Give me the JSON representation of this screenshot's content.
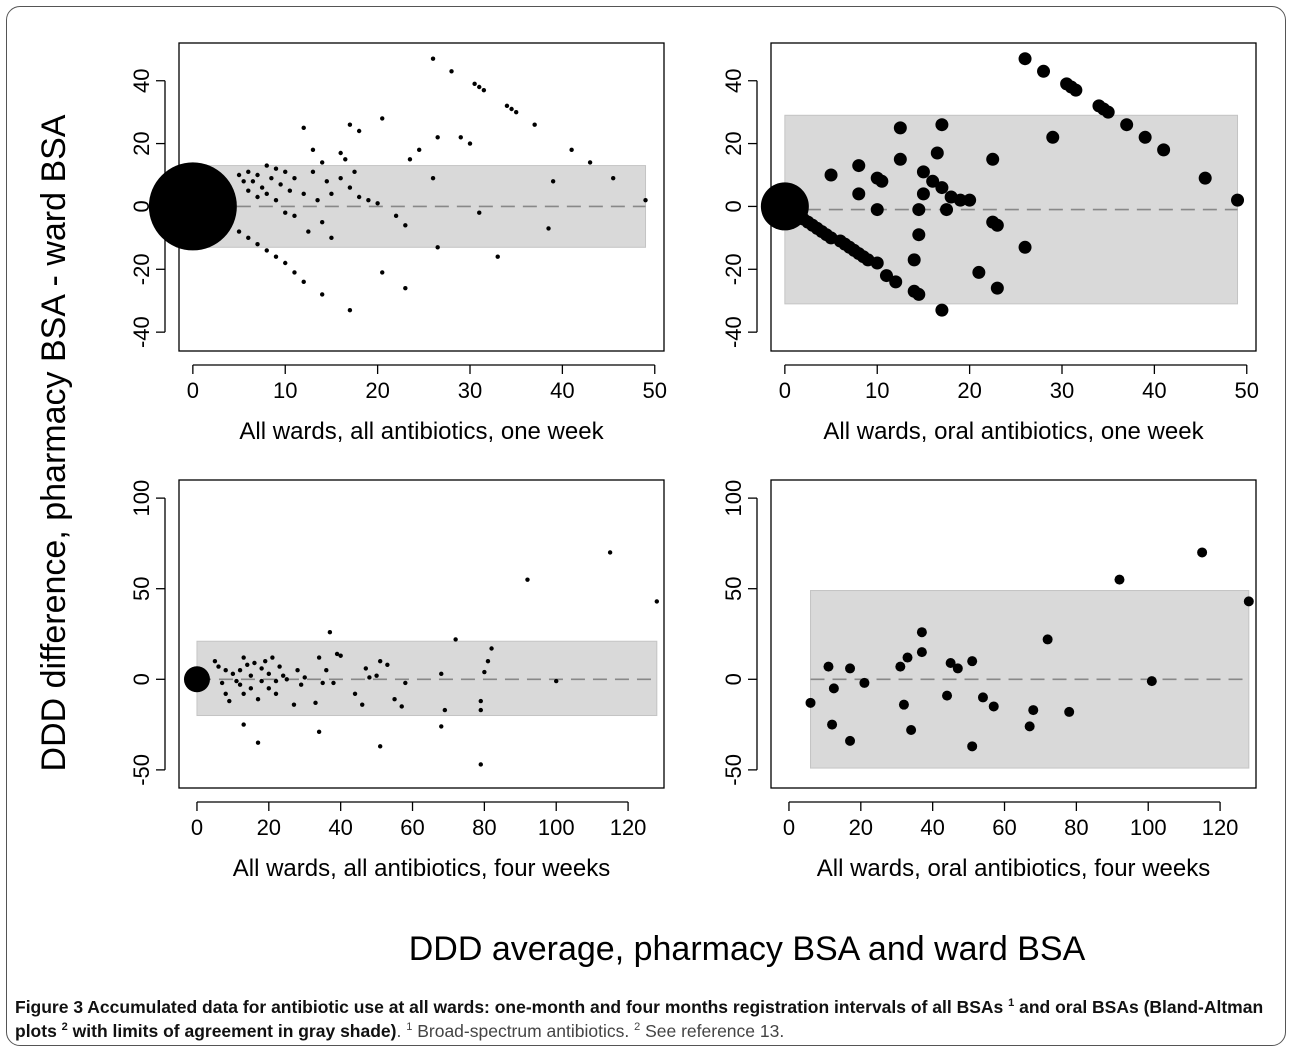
{
  "figure": {
    "y_axis_title": "DDD difference, pharmacy BSA - ward BSA",
    "x_axis_title": "DDD average, pharmacy BSA and ward BSA",
    "caption": {
      "label": "Figure 3",
      "bold_part1": " Accumulated data for antibiotic use at all wards: one-month and four months registration intervals of all BSAs ",
      "sup1": "1",
      "bold_part2": " and oral BSAs (Bland-Altman plots ",
      "sup2": "2",
      "bold_part3": " with limits of agreement in gray shade)",
      "normal_part1": ". ",
      "sup3": "1",
      "normal_part2": " Broad-spectrum antibiotics. ",
      "sup4": "2",
      "normal_part3": " See reference 13."
    }
  },
  "colors": {
    "points": "#000000",
    "limits_band": "#d9d9d9",
    "mean_line": "#888888",
    "axes": "#000000"
  },
  "chart_data": [
    {
      "type": "scatter",
      "xlabel": "All wards, all antibiotics, one week",
      "ylabel": "",
      "xlim": [
        -1.5,
        51
      ],
      "ylim": [
        -46,
        52
      ],
      "xticks": [
        0,
        10,
        20,
        30,
        40,
        50
      ],
      "yticks": [
        -40,
        -20,
        0,
        20,
        40
      ],
      "limits_of_agreement": [
        -13,
        13
      ],
      "band_x": [
        0,
        49
      ],
      "mean_difference": 0,
      "big_points": [
        {
          "x": 0,
          "y": 0,
          "r_px": 44
        }
      ],
      "points": [
        {
          "x": 5,
          "y": 10
        },
        {
          "x": 5.5,
          "y": 8
        },
        {
          "x": 6,
          "y": 11
        },
        {
          "x": 6,
          "y": 5
        },
        {
          "x": 6.5,
          "y": 8
        },
        {
          "x": 7,
          "y": 10
        },
        {
          "x": 7,
          "y": 3
        },
        {
          "x": 7.5,
          "y": 6
        },
        {
          "x": 8,
          "y": 13
        },
        {
          "x": 8,
          "y": 4
        },
        {
          "x": 8.5,
          "y": 9
        },
        {
          "x": 9,
          "y": 12
        },
        {
          "x": 9,
          "y": 2
        },
        {
          "x": 9.5,
          "y": 7
        },
        {
          "x": 10,
          "y": 11
        },
        {
          "x": 10,
          "y": -2
        },
        {
          "x": 10.5,
          "y": 5
        },
        {
          "x": 11,
          "y": 9
        },
        {
          "x": 11,
          "y": -3
        },
        {
          "x": 12,
          "y": 25
        },
        {
          "x": 12,
          "y": 4
        },
        {
          "x": 12.5,
          "y": -8
        },
        {
          "x": 13,
          "y": 11
        },
        {
          "x": 13,
          "y": 18
        },
        {
          "x": 13.5,
          "y": 2
        },
        {
          "x": 14,
          "y": 14
        },
        {
          "x": 14,
          "y": -5
        },
        {
          "x": 14.5,
          "y": 8
        },
        {
          "x": 15,
          "y": 4
        },
        {
          "x": 15,
          "y": -10
        },
        {
          "x": 16,
          "y": 9
        },
        {
          "x": 16,
          "y": 17
        },
        {
          "x": 16.5,
          "y": 15
        },
        {
          "x": 17,
          "y": 26
        },
        {
          "x": 17,
          "y": 6
        },
        {
          "x": 17.5,
          "y": 11
        },
        {
          "x": 18,
          "y": 24
        },
        {
          "x": 18,
          "y": 3
        },
        {
          "x": 19,
          "y": 2
        },
        {
          "x": 20,
          "y": 1
        },
        {
          "x": 20.5,
          "y": 28
        },
        {
          "x": 20.5,
          "y": -21
        },
        {
          "x": 22,
          "y": -3
        },
        {
          "x": 23,
          "y": -26
        },
        {
          "x": 23,
          "y": -6
        },
        {
          "x": 23.5,
          "y": 15
        },
        {
          "x": 24.5,
          "y": 18
        },
        {
          "x": 26,
          "y": 9
        },
        {
          "x": 26,
          "y": 47
        },
        {
          "x": 26.5,
          "y": 22
        },
        {
          "x": 26.5,
          "y": -13
        },
        {
          "x": 28,
          "y": 43
        },
        {
          "x": 29,
          "y": 22
        },
        {
          "x": 30,
          "y": 20
        },
        {
          "x": 30.5,
          "y": 39
        },
        {
          "x": 31,
          "y": 38
        },
        {
          "x": 31,
          "y": -2
        },
        {
          "x": 31.5,
          "y": 37
        },
        {
          "x": 33,
          "y": -16
        },
        {
          "x": 34,
          "y": 32
        },
        {
          "x": 34.5,
          "y": 31
        },
        {
          "x": 35,
          "y": 30
        },
        {
          "x": 37,
          "y": 26
        },
        {
          "x": 38.5,
          "y": -7
        },
        {
          "x": 39,
          "y": 8
        },
        {
          "x": 41,
          "y": 18
        },
        {
          "x": 43,
          "y": 14
        },
        {
          "x": 45.5,
          "y": 9
        },
        {
          "x": 49,
          "y": 2
        },
        {
          "x": 2,
          "y": -2
        },
        {
          "x": 3,
          "y": -4
        },
        {
          "x": 4,
          "y": -6
        },
        {
          "x": 5,
          "y": -8
        },
        {
          "x": 6,
          "y": -10
        },
        {
          "x": 7,
          "y": -12
        },
        {
          "x": 8,
          "y": -14
        },
        {
          "x": 9,
          "y": -16
        },
        {
          "x": 10,
          "y": -18
        },
        {
          "x": 11,
          "y": -21
        },
        {
          "x": 12,
          "y": -24
        },
        {
          "x": 14,
          "y": -28
        },
        {
          "x": 17,
          "y": -33
        }
      ]
    },
    {
      "type": "scatter",
      "xlabel": "All wards, oral antibiotics, one week",
      "ylabel": "",
      "xlim": [
        -1.5,
        51
      ],
      "ylim": [
        -46,
        52
      ],
      "xticks": [
        0,
        10,
        20,
        30,
        40,
        50
      ],
      "yticks": [
        -40,
        -20,
        0,
        20,
        40
      ],
      "limits_of_agreement": [
        -31,
        29
      ],
      "band_x": [
        0,
        49
      ],
      "mean_difference": -1,
      "big_points": [
        {
          "x": 0,
          "y": 0,
          "r_px": 24
        }
      ],
      "points": [
        {
          "x": 1,
          "y": -2
        },
        {
          "x": 2,
          "y": -4
        },
        {
          "x": 2.5,
          "y": -5
        },
        {
          "x": 3,
          "y": -6
        },
        {
          "x": 3.5,
          "y": -7
        },
        {
          "x": 4,
          "y": -8
        },
        {
          "x": 4.5,
          "y": -9
        },
        {
          "x": 5,
          "y": -10
        },
        {
          "x": 6,
          "y": -11
        },
        {
          "x": 6.5,
          "y": -12
        },
        {
          "x": 7,
          "y": -13
        },
        {
          "x": 7.5,
          "y": -14
        },
        {
          "x": 8,
          "y": -15
        },
        {
          "x": 8.5,
          "y": -16
        },
        {
          "x": 9,
          "y": -17
        },
        {
          "x": 10,
          "y": -18
        },
        {
          "x": 5,
          "y": 10
        },
        {
          "x": 8,
          "y": 13
        },
        {
          "x": 8,
          "y": 4
        },
        {
          "x": 10,
          "y": 9
        },
        {
          "x": 10.5,
          "y": 8
        },
        {
          "x": 10,
          "y": -1
        },
        {
          "x": 11,
          "y": -22
        },
        {
          "x": 12,
          "y": -24
        },
        {
          "x": 12.5,
          "y": 15
        },
        {
          "x": 12.5,
          "y": 25
        },
        {
          "x": 14,
          "y": -27
        },
        {
          "x": 14.5,
          "y": -28
        },
        {
          "x": 14,
          "y": -17
        },
        {
          "x": 14.5,
          "y": -1
        },
        {
          "x": 14.5,
          "y": -9
        },
        {
          "x": 15,
          "y": 4
        },
        {
          "x": 15,
          "y": 11
        },
        {
          "x": 16,
          "y": 8
        },
        {
          "x": 16.5,
          "y": 17
        },
        {
          "x": 17,
          "y": -33
        },
        {
          "x": 17,
          "y": 26
        },
        {
          "x": 17,
          "y": 6
        },
        {
          "x": 17.5,
          "y": -1
        },
        {
          "x": 18,
          "y": 3
        },
        {
          "x": 19,
          "y": 2
        },
        {
          "x": 20,
          "y": 2
        },
        {
          "x": 21,
          "y": -21
        },
        {
          "x": 22.5,
          "y": 15
        },
        {
          "x": 22.5,
          "y": -5
        },
        {
          "x": 23,
          "y": -26
        },
        {
          "x": 23,
          "y": -6
        },
        {
          "x": 26,
          "y": -13
        },
        {
          "x": 26,
          "y": 47
        },
        {
          "x": 28,
          "y": 43
        },
        {
          "x": 29,
          "y": 22
        },
        {
          "x": 30.5,
          "y": 39
        },
        {
          "x": 31,
          "y": 38
        },
        {
          "x": 31.5,
          "y": 37
        },
        {
          "x": 34,
          "y": 32
        },
        {
          "x": 34.5,
          "y": 31
        },
        {
          "x": 35,
          "y": 30
        },
        {
          "x": 37,
          "y": 26
        },
        {
          "x": 39,
          "y": 22
        },
        {
          "x": 41,
          "y": 18
        },
        {
          "x": 45.5,
          "y": 9
        },
        {
          "x": 49,
          "y": 2
        }
      ]
    },
    {
      "type": "scatter",
      "xlabel": "All wards, all antibiotics, four weeks",
      "ylabel": "",
      "xlim": [
        -5,
        130
      ],
      "ylim": [
        -60,
        110
      ],
      "xticks": [
        0,
        20,
        40,
        60,
        80,
        100,
        120
      ],
      "yticks": [
        -50,
        0,
        50,
        100
      ],
      "limits_of_agreement": [
        -20,
        21
      ],
      "band_x": [
        0,
        128
      ],
      "mean_difference": 0,
      "big_points": [
        {
          "x": 0,
          "y": 0,
          "r_px": 13
        }
      ],
      "points": [
        {
          "x": 5,
          "y": 10
        },
        {
          "x": 6,
          "y": 7
        },
        {
          "x": 7,
          "y": -2
        },
        {
          "x": 8,
          "y": 5
        },
        {
          "x": 8,
          "y": -8
        },
        {
          "x": 9,
          "y": -12
        },
        {
          "x": 10,
          "y": 3
        },
        {
          "x": 11,
          "y": -1
        },
        {
          "x": 12,
          "y": 5
        },
        {
          "x": 12,
          "y": -3
        },
        {
          "x": 13,
          "y": 12
        },
        {
          "x": 13,
          "y": -25
        },
        {
          "x": 13,
          "y": -8
        },
        {
          "x": 14,
          "y": 8
        },
        {
          "x": 15,
          "y": 2
        },
        {
          "x": 15,
          "y": -5
        },
        {
          "x": 16,
          "y": 9
        },
        {
          "x": 17,
          "y": -11
        },
        {
          "x": 17,
          "y": -35
        },
        {
          "x": 18,
          "y": 6
        },
        {
          "x": 18,
          "y": -1
        },
        {
          "x": 19,
          "y": 10
        },
        {
          "x": 20,
          "y": -5
        },
        {
          "x": 20,
          "y": 3
        },
        {
          "x": 21,
          "y": 12
        },
        {
          "x": 22,
          "y": -8
        },
        {
          "x": 22,
          "y": -1
        },
        {
          "x": 23,
          "y": 7
        },
        {
          "x": 24,
          "y": 2
        },
        {
          "x": 25,
          "y": 0
        },
        {
          "x": 27,
          "y": -14
        },
        {
          "x": 28,
          "y": 5
        },
        {
          "x": 29,
          "y": -3
        },
        {
          "x": 30,
          "y": 1
        },
        {
          "x": 33,
          "y": -13
        },
        {
          "x": 34,
          "y": 12
        },
        {
          "x": 34,
          "y": -29
        },
        {
          "x": 35,
          "y": -2
        },
        {
          "x": 36,
          "y": 5
        },
        {
          "x": 37,
          "y": 26
        },
        {
          "x": 38,
          "y": -2
        },
        {
          "x": 39,
          "y": 14
        },
        {
          "x": 40,
          "y": 13
        },
        {
          "x": 44,
          "y": -8
        },
        {
          "x": 46,
          "y": -14
        },
        {
          "x": 47,
          "y": 6
        },
        {
          "x": 48,
          "y": 1
        },
        {
          "x": 50,
          "y": 2
        },
        {
          "x": 51,
          "y": 10
        },
        {
          "x": 51,
          "y": -37
        },
        {
          "x": 53,
          "y": 8
        },
        {
          "x": 55,
          "y": -11
        },
        {
          "x": 57,
          "y": -15
        },
        {
          "x": 58,
          "y": -2
        },
        {
          "x": 68,
          "y": -26
        },
        {
          "x": 68,
          "y": 3
        },
        {
          "x": 69,
          "y": -17
        },
        {
          "x": 72,
          "y": 22
        },
        {
          "x": 79,
          "y": -47
        },
        {
          "x": 79,
          "y": -17
        },
        {
          "x": 79,
          "y": -12
        },
        {
          "x": 80,
          "y": 4
        },
        {
          "x": 81,
          "y": 10
        },
        {
          "x": 82,
          "y": 17
        },
        {
          "x": 92,
          "y": 55
        },
        {
          "x": 100,
          "y": -1
        },
        {
          "x": 115,
          "y": 70
        },
        {
          "x": 128,
          "y": 43
        }
      ]
    },
    {
      "type": "scatter",
      "xlabel": "All wards, oral antibiotics, four weeks",
      "ylabel": "",
      "xlim": [
        -5,
        130
      ],
      "ylim": [
        -60,
        110
      ],
      "xticks": [
        0,
        20,
        40,
        60,
        80,
        100,
        120
      ],
      "yticks": [
        -50,
        0,
        50,
        100
      ],
      "limits_of_agreement": [
        -49,
        49
      ],
      "band_x": [
        6,
        128
      ],
      "mean_difference": 0,
      "big_points": [],
      "points": [
        {
          "x": 6,
          "y": -13
        },
        {
          "x": 11,
          "y": 7
        },
        {
          "x": 12,
          "y": -25
        },
        {
          "x": 12.5,
          "y": -5
        },
        {
          "x": 17,
          "y": 6
        },
        {
          "x": 17,
          "y": -34
        },
        {
          "x": 21,
          "y": -2
        },
        {
          "x": 31,
          "y": 7
        },
        {
          "x": 32,
          "y": -14
        },
        {
          "x": 33,
          "y": 12
        },
        {
          "x": 34,
          "y": -28
        },
        {
          "x": 37,
          "y": 15
        },
        {
          "x": 37,
          "y": 26
        },
        {
          "x": 44,
          "y": -9
        },
        {
          "x": 45,
          "y": 9
        },
        {
          "x": 47,
          "y": 6
        },
        {
          "x": 51,
          "y": 10
        },
        {
          "x": 51,
          "y": -37
        },
        {
          "x": 54,
          "y": -10
        },
        {
          "x": 57,
          "y": -15
        },
        {
          "x": 67,
          "y": -26
        },
        {
          "x": 68,
          "y": -17
        },
        {
          "x": 72,
          "y": 22
        },
        {
          "x": 78,
          "y": -18
        },
        {
          "x": 92,
          "y": 55
        },
        {
          "x": 101,
          "y": -1
        },
        {
          "x": 115,
          "y": 70
        },
        {
          "x": 128,
          "y": 43
        }
      ]
    }
  ]
}
